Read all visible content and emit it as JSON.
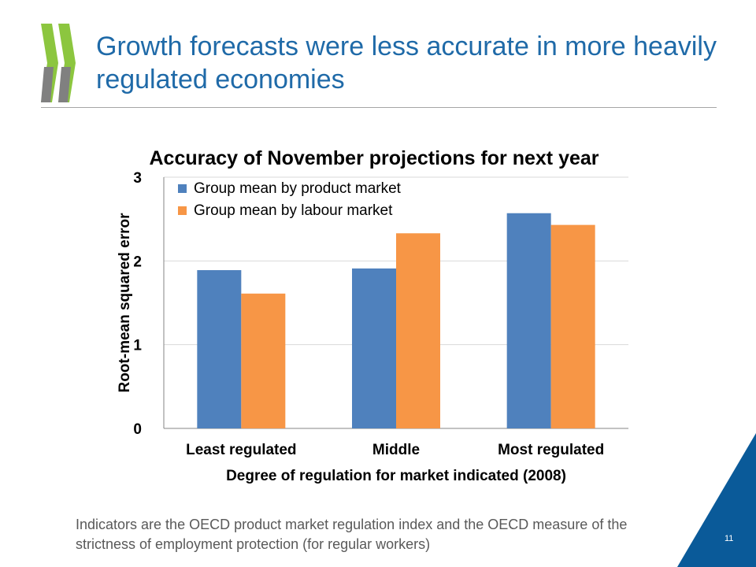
{
  "slide": {
    "title": "Growth forecasts were less accurate in more heavily regulated economies",
    "footnote": "Indicators are the OECD product market regulation index and the OECD measure of the strictness of employment protection (for regular workers)",
    "page_number": "11"
  },
  "colors": {
    "title": "#1f6aa8",
    "logo_green": "#8cc63f",
    "logo_grey": "#808080",
    "corner_blue": "#0a5a99",
    "series_product": "#4f81bd",
    "series_labour": "#f79646",
    "gridline": "#d9d9d9"
  },
  "icons": {
    "logo": "oecd-chevron-logo-icon"
  },
  "chart_data": {
    "type": "bar",
    "title": "Accuracy of November projections for next year",
    "xlabel": "Degree of regulation for market indicated (2008)",
    "ylabel": "Root-mean squared error",
    "categories": [
      "Least regulated",
      "Middle",
      "Most regulated"
    ],
    "series": [
      {
        "name": "Group mean by product market",
        "values": [
          1.89,
          1.91,
          2.57
        ]
      },
      {
        "name": "Group mean by labour market",
        "values": [
          1.61,
          2.33,
          2.43
        ]
      }
    ],
    "ylim": [
      0,
      3
    ],
    "yticks": [
      0,
      1,
      2,
      3
    ],
    "grid": true,
    "legend_position": "top-left"
  }
}
